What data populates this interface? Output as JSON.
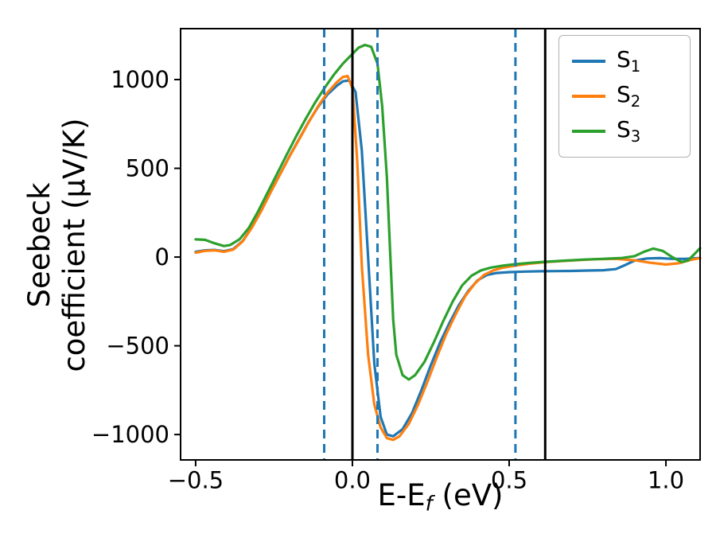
{
  "chart_data": {
    "type": "line",
    "title": "",
    "xlabel": {
      "prefix": "E-E",
      "sub": "f",
      "suffix": " (eV)"
    },
    "ylabel": {
      "line1": "Seebeck",
      "line2": "coefficient  (μV/K)"
    },
    "xlim": [
      -0.548,
      1.109
    ],
    "ylim": [
      -1143,
      1287
    ],
    "grid": false,
    "xticks": {
      "values": [
        -0.5,
        0.0,
        0.5,
        1.0
      ],
      "labels": [
        "−0.5",
        "0.0",
        "0.5",
        "1.0"
      ]
    },
    "yticks": {
      "values": [
        -1000,
        -500,
        0,
        500,
        1000
      ],
      "labels": [
        "−1000",
        "−500",
        "0",
        "500",
        "1000"
      ]
    },
    "vlines": [
      {
        "x": -0.09,
        "style": "dashed",
        "color": "#1f77b4"
      },
      {
        "x": 0.0,
        "style": "solid",
        "color": "#000000"
      },
      {
        "x": 0.08,
        "style": "dashed",
        "color": "#1f77b4"
      },
      {
        "x": 0.52,
        "style": "dashed",
        "color": "#1f77b4"
      },
      {
        "x": 0.615,
        "style": "solid",
        "color": "#000000"
      }
    ],
    "series": [
      {
        "name": "S",
        "sub": "1",
        "color": "#1f77b4",
        "points": [
          [
            -0.5,
            30
          ],
          [
            -0.47,
            38
          ],
          [
            -0.44,
            40
          ],
          [
            -0.41,
            33
          ],
          [
            -0.38,
            45
          ],
          [
            -0.35,
            90
          ],
          [
            -0.32,
            170
          ],
          [
            -0.29,
            265
          ],
          [
            -0.26,
            370
          ],
          [
            -0.23,
            470
          ],
          [
            -0.2,
            570
          ],
          [
            -0.17,
            665
          ],
          [
            -0.14,
            760
          ],
          [
            -0.11,
            845
          ],
          [
            -0.08,
            915
          ],
          [
            -0.05,
            965
          ],
          [
            -0.03,
            990
          ],
          [
            -0.01,
            995
          ],
          [
            0.01,
            930
          ],
          [
            0.03,
            600
          ],
          [
            0.05,
            0
          ],
          [
            0.07,
            -600
          ],
          [
            0.09,
            -900
          ],
          [
            0.11,
            -1000
          ],
          [
            0.13,
            -1010
          ],
          [
            0.16,
            -970
          ],
          [
            0.19,
            -880
          ],
          [
            0.22,
            -750
          ],
          [
            0.25,
            -610
          ],
          [
            0.28,
            -480
          ],
          [
            0.31,
            -370
          ],
          [
            0.34,
            -270
          ],
          [
            0.37,
            -190
          ],
          [
            0.4,
            -130
          ],
          [
            0.43,
            -100
          ],
          [
            0.46,
            -90
          ],
          [
            0.5,
            -85
          ],
          [
            0.55,
            -82
          ],
          [
            0.6,
            -80
          ],
          [
            0.65,
            -79
          ],
          [
            0.7,
            -78
          ],
          [
            0.75,
            -76
          ],
          [
            0.8,
            -74
          ],
          [
            0.84,
            -68
          ],
          [
            0.87,
            -45
          ],
          [
            0.9,
            -20
          ],
          [
            0.94,
            -8
          ],
          [
            0.98,
            -6
          ],
          [
            1.02,
            -10
          ],
          [
            1.06,
            -10
          ],
          [
            1.109,
            -5
          ]
        ]
      },
      {
        "name": "S",
        "sub": "2",
        "color": "#ff7f0e",
        "points": [
          [
            -0.5,
            25
          ],
          [
            -0.47,
            35
          ],
          [
            -0.44,
            38
          ],
          [
            -0.41,
            30
          ],
          [
            -0.38,
            42
          ],
          [
            -0.35,
            88
          ],
          [
            -0.32,
            168
          ],
          [
            -0.29,
            262
          ],
          [
            -0.26,
            368
          ],
          [
            -0.23,
            468
          ],
          [
            -0.2,
            568
          ],
          [
            -0.17,
            663
          ],
          [
            -0.14,
            758
          ],
          [
            -0.11,
            848
          ],
          [
            -0.08,
            925
          ],
          [
            -0.05,
            985
          ],
          [
            -0.03,
            1015
          ],
          [
            -0.015,
            1020
          ],
          [
            0.0,
            950
          ],
          [
            0.015,
            550
          ],
          [
            0.03,
            -50
          ],
          [
            0.05,
            -550
          ],
          [
            0.07,
            -830
          ],
          [
            0.09,
            -960
          ],
          [
            0.11,
            -1020
          ],
          [
            0.13,
            -1030
          ],
          [
            0.15,
            -1010
          ],
          [
            0.18,
            -940
          ],
          [
            0.21,
            -830
          ],
          [
            0.24,
            -700
          ],
          [
            0.27,
            -560
          ],
          [
            0.3,
            -430
          ],
          [
            0.33,
            -320
          ],
          [
            0.36,
            -220
          ],
          [
            0.39,
            -150
          ],
          [
            0.42,
            -100
          ],
          [
            0.45,
            -75
          ],
          [
            0.48,
            -60
          ],
          [
            0.52,
            -48
          ],
          [
            0.57,
            -36
          ],
          [
            0.62,
            -28
          ],
          [
            0.67,
            -22
          ],
          [
            0.72,
            -17
          ],
          [
            0.78,
            -12
          ],
          [
            0.84,
            -10
          ],
          [
            0.9,
            -18
          ],
          [
            0.95,
            -32
          ],
          [
            1.0,
            -42
          ],
          [
            1.04,
            -35
          ],
          [
            1.08,
            -15
          ],
          [
            1.109,
            -6
          ]
        ]
      },
      {
        "name": "S",
        "sub": "3",
        "color": "#2ca02c",
        "points": [
          [
            -0.5,
            100
          ],
          [
            -0.47,
            97
          ],
          [
            -0.44,
            78
          ],
          [
            -0.41,
            62
          ],
          [
            -0.39,
            68
          ],
          [
            -0.36,
            100
          ],
          [
            -0.33,
            165
          ],
          [
            -0.3,
            260
          ],
          [
            -0.27,
            365
          ],
          [
            -0.24,
            470
          ],
          [
            -0.21,
            575
          ],
          [
            -0.18,
            678
          ],
          [
            -0.15,
            775
          ],
          [
            -0.12,
            868
          ],
          [
            -0.09,
            950
          ],
          [
            -0.06,
            1025
          ],
          [
            -0.03,
            1090
          ],
          [
            0.0,
            1145
          ],
          [
            0.02,
            1180
          ],
          [
            0.04,
            1195
          ],
          [
            0.06,
            1185
          ],
          [
            0.08,
            1090
          ],
          [
            0.095,
            850
          ],
          [
            0.11,
            450
          ],
          [
            0.12,
            50
          ],
          [
            0.13,
            -350
          ],
          [
            0.14,
            -550
          ],
          [
            0.16,
            -665
          ],
          [
            0.18,
            -690
          ],
          [
            0.2,
            -665
          ],
          [
            0.23,
            -590
          ],
          [
            0.26,
            -480
          ],
          [
            0.29,
            -360
          ],
          [
            0.32,
            -250
          ],
          [
            0.35,
            -160
          ],
          [
            0.38,
            -105
          ],
          [
            0.41,
            -75
          ],
          [
            0.44,
            -60
          ],
          [
            0.48,
            -48
          ],
          [
            0.52,
            -40
          ],
          [
            0.57,
            -32
          ],
          [
            0.62,
            -26
          ],
          [
            0.68,
            -20
          ],
          [
            0.74,
            -14
          ],
          [
            0.8,
            -10
          ],
          [
            0.86,
            -5
          ],
          [
            0.9,
            5
          ],
          [
            0.93,
            30
          ],
          [
            0.96,
            48
          ],
          [
            0.99,
            35
          ],
          [
            1.02,
            0
          ],
          [
            1.05,
            -28
          ],
          [
            1.07,
            -20
          ],
          [
            1.09,
            15
          ],
          [
            1.109,
            50
          ]
        ]
      }
    ],
    "legend": {
      "position": "upper right",
      "entries": [
        {
          "base": "S",
          "sub": "1",
          "color": "#1f77b4"
        },
        {
          "base": "S",
          "sub": "2",
          "color": "#ff7f0e"
        },
        {
          "base": "S",
          "sub": "3",
          "color": "#2ca02c"
        }
      ]
    }
  }
}
